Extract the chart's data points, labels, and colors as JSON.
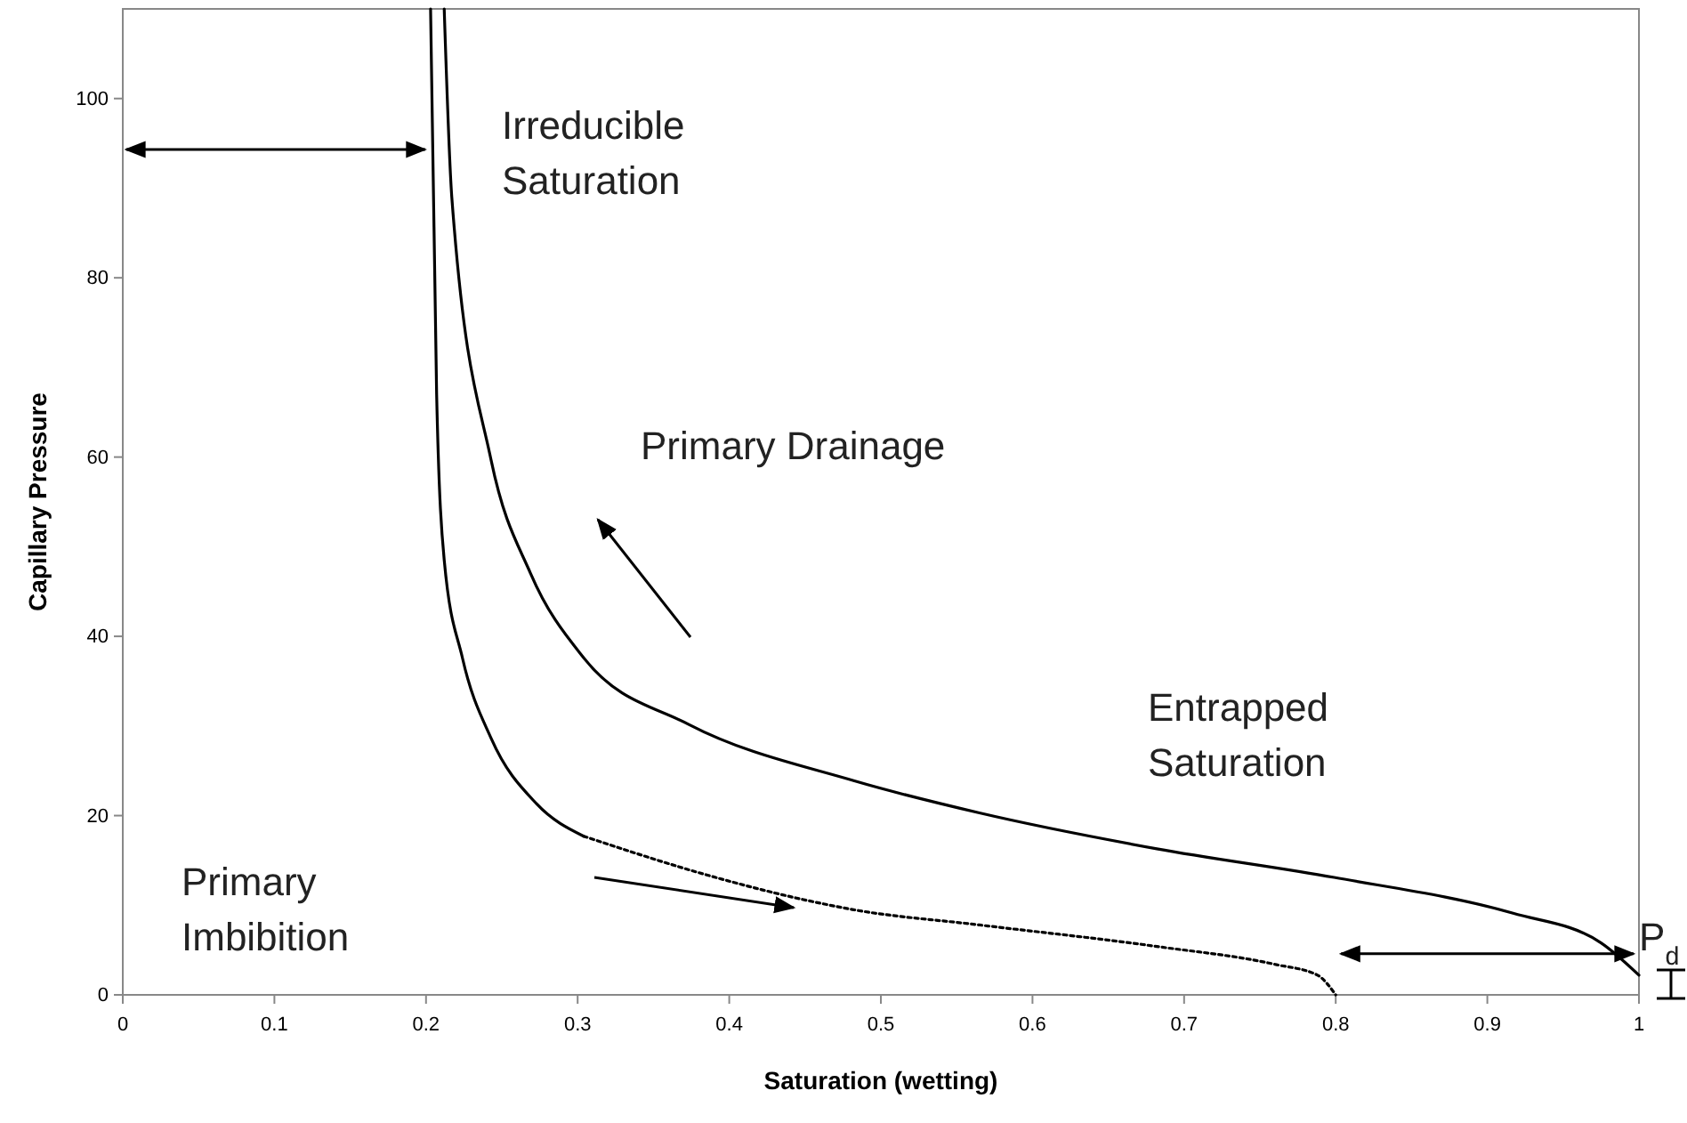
{
  "chart_data": {
    "type": "line",
    "xlabel": "Saturation (wetting)",
    "ylabel": "Capillary Pressure",
    "xlim": [
      0,
      1
    ],
    "ylim": [
      0,
      110
    ],
    "xticks": [
      0,
      0.1,
      0.2,
      0.3,
      0.4,
      0.5,
      0.6,
      0.7,
      0.8,
      0.9,
      1
    ],
    "yticks": [
      0,
      20,
      40,
      60,
      80,
      100
    ],
    "grid": false,
    "marker": "none",
    "series": [
      {
        "color": "#000000",
        "line_style": "solid",
        "x": [
          0.212,
          0.217,
          0.243,
          0.269,
          0.304,
          0.373,
          0.482,
          0.565,
          0.682,
          0.799,
          0.917,
          0.975,
          1.0
        ],
        "values": [
          110,
          89,
          59.6,
          47,
          37.6,
          30.2,
          23.9,
          20.3,
          16.3,
          13.1,
          9.1,
          5.8,
          2.2
        ]
      },
      {
        "color": "#000000",
        "line_style": "solid",
        "x": [
          0.203,
          0.207,
          0.212,
          0.224,
          0.243,
          0.273,
          0.304
        ],
        "values": [
          110,
          67,
          48.5,
          37.6,
          28.6,
          21.3,
          17.7
        ]
      },
      {
        "color": "#000000",
        "line_style": "dotted",
        "x": [
          0.304,
          0.391,
          0.447,
          0.482,
          0.565,
          0.682,
          0.76,
          0.788,
          0.8
        ],
        "values": [
          17.7,
          13.1,
          10.7,
          9.5,
          7.8,
          5.4,
          3.4,
          2.2,
          0
        ]
      }
    ],
    "annotations": [
      "Irreducible Saturation",
      "Primary Drainage",
      "Entrapped Saturation",
      "Primary Imbibition",
      "P$_{d}$"
    ]
  }
}
